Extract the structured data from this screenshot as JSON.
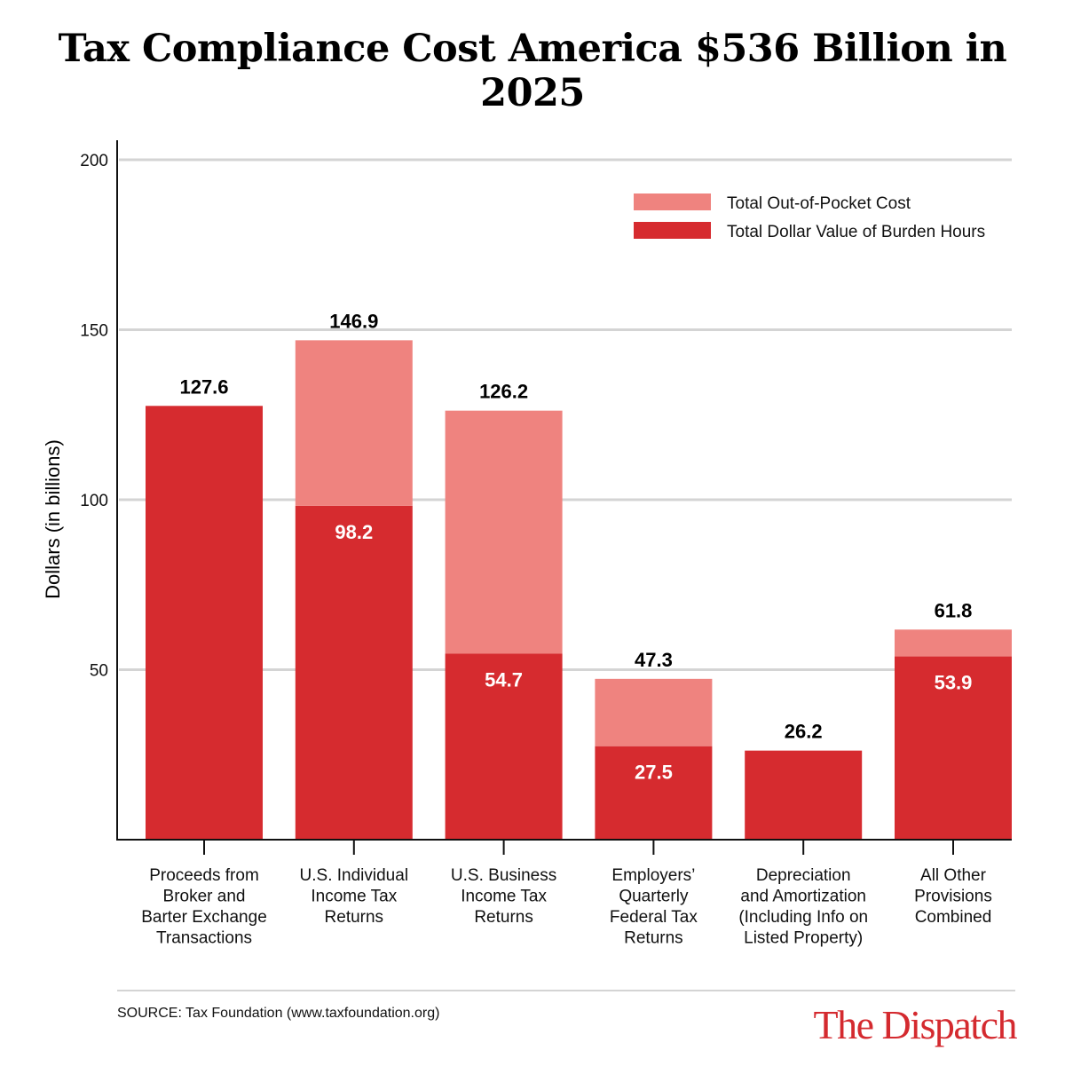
{
  "chart_data": {
    "type": "bar",
    "stacked": true,
    "title": "Tax Compliance Cost America $536 Billion in 2025",
    "ylabel": "Dollars (in billions)",
    "xlabel": "",
    "ylim": [
      0,
      200
    ],
    "yticks": [
      50,
      100,
      150,
      200
    ],
    "grid": true,
    "legend_position": "top-right",
    "categories": [
      [
        "Proceeds from",
        "Broker and",
        "Barter Exchange",
        "Transactions"
      ],
      [
        "U.S. Individual",
        "Income Tax",
        "Returns"
      ],
      [
        "U.S. Business",
        "Income Tax",
        "Returns"
      ],
      [
        "Employers’",
        "Quarterly",
        "Federal Tax",
        "Returns"
      ],
      [
        "Depreciation",
        "and Amortization",
        "(Including Info on",
        "Listed Property)"
      ],
      [
        "All Other",
        "Provisions",
        "Combined"
      ]
    ],
    "series": [
      {
        "name": "Total Dollar Value of Burden Hours",
        "color": "#d62b2f",
        "values": [
          127.6,
          98.2,
          54.7,
          27.5,
          26.2,
          53.9
        ],
        "labels": [
          "",
          "98.2",
          "54.7",
          "27.5",
          "",
          "53.9"
        ]
      },
      {
        "name": "Total Out-of-Pocket Cost",
        "color": "#ef837f",
        "values": [
          0,
          48.7,
          71.5,
          19.8,
          0,
          7.9
        ]
      }
    ],
    "totals": [
      "127.6",
      "146.9",
      "126.2",
      "47.3",
      "26.2",
      "61.8"
    ],
    "legend_order": [
      1,
      0
    ]
  },
  "source": "SOURCE: Tax Foundation (www.taxfoundation.org)",
  "brand": "The Dispatch"
}
